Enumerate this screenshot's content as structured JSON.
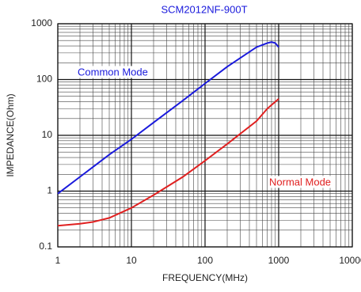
{
  "chart_data": {
    "type": "line",
    "title": "SCM2012NF-900T",
    "x_label": "FREQUENCY(MHz)",
    "y_label": "IMPEDANCE(Ohm)",
    "x": [
      1,
      2,
      3,
      5,
      10,
      20,
      50,
      100,
      200,
      500,
      700,
      800,
      900,
      1000
    ],
    "series": [
      {
        "name": "Common Mode",
        "color": "#1a1adc",
        "values": [
          0.9,
          1.8,
          2.7,
          4.5,
          8.5,
          17,
          42,
          85,
          170,
          380,
          450,
          470,
          450,
          380
        ]
      },
      {
        "name": "Normal Mode",
        "color": "#e02020",
        "values": [
          0.24,
          0.26,
          0.28,
          0.33,
          0.5,
          0.85,
          1.8,
          3.5,
          7,
          18,
          30,
          35,
          40,
          45
        ]
      }
    ],
    "xlim": [
      1,
      10000
    ],
    "xticks": [
      1,
      10,
      100,
      1000,
      10000
    ],
    "ylim": [
      0.1,
      1000
    ],
    "yticks": [
      0.1,
      1,
      10,
      100,
      1000
    ],
    "log_x": true,
    "log_y": true,
    "grid": true,
    "minor_grid": true
  }
}
